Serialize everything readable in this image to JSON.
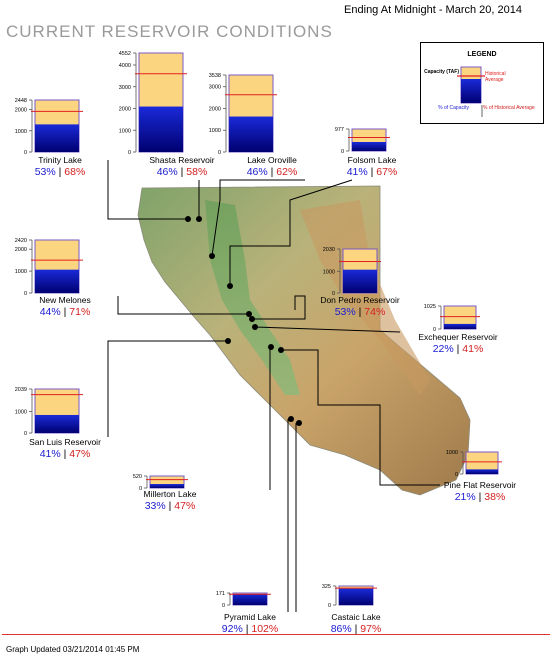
{
  "header": {
    "date_label": "Ending At Midnight - March 20, 2014",
    "title": "CURRENT RESERVOIR CONDITIONS"
  },
  "footer": {
    "updated": "Graph Updated 03/21/2014 01:45 PM"
  },
  "legend": {
    "title": "LEGEND",
    "capacity": "Capacity (TAF)",
    "historical": "Historical Average",
    "pct_capacity": "% of Capacity",
    "pct_historical": "% of Historical Average"
  },
  "colors": {
    "capacity_fill": "#fcd580",
    "storage_fill": "#0a14b0",
    "historical_line": "#e02020",
    "pct_capacity_text": "#1a1ad0",
    "pct_historical_text": "#d42020"
  },
  "chart_data": {
    "type": "bar",
    "units": "TAF",
    "reservoirs": [
      {
        "name": "Trinity Lake",
        "capacity": 2448,
        "storage": 1300,
        "historical": 1910,
        "pct_capacity": "53%",
        "pct_historical": "68%",
        "ticks": [
          "2448",
          "2000",
          "1000",
          "0"
        ]
      },
      {
        "name": "Shasta Reservoir",
        "capacity": 4552,
        "storage": 2090,
        "historical": 3600,
        "pct_capacity": "46%",
        "pct_historical": "58%",
        "ticks": [
          "4552",
          "4000",
          "3000",
          "2000",
          "1000",
          "0"
        ]
      },
      {
        "name": "Lake Oroville",
        "capacity": 3538,
        "storage": 1630,
        "historical": 2630,
        "pct_capacity": "46%",
        "pct_historical": "62%",
        "ticks": [
          "3538",
          "3000",
          "2000",
          "1000",
          "0"
        ]
      },
      {
        "name": "Folsom Lake",
        "capacity": 977,
        "storage": 400,
        "historical": 597,
        "pct_capacity": "41%",
        "pct_historical": "67%",
        "ticks": [
          "977",
          "0"
        ]
      },
      {
        "name": "New Melones",
        "capacity": 2420,
        "storage": 1065,
        "historical": 1500,
        "pct_capacity": "44%",
        "pct_historical": "71%",
        "ticks": [
          "2420",
          "2000",
          "1000",
          "0"
        ]
      },
      {
        "name": "Don Pedro Reservoir",
        "capacity": 2030,
        "storage": 1076,
        "historical": 1454,
        "pct_capacity": "53%",
        "pct_historical": "74%",
        "ticks": [
          "2030",
          "1000",
          "0"
        ]
      },
      {
        "name": "Exchequer Reservoir",
        "capacity": 1025,
        "storage": 226,
        "historical": 550,
        "pct_capacity": "22%",
        "pct_historical": "41%",
        "ticks": [
          "1025",
          "0"
        ]
      },
      {
        "name": "San Luis Reservoir",
        "capacity": 2039,
        "storage": 836,
        "historical": 1779,
        "pct_capacity": "41%",
        "pct_historical": "47%",
        "ticks": [
          "2039",
          "1000",
          "0"
        ]
      },
      {
        "name": "Millerton Lake",
        "capacity": 520,
        "storage": 172,
        "historical": 365,
        "pct_capacity": "33%",
        "pct_historical": "47%",
        "ticks": [
          "520",
          "0"
        ]
      },
      {
        "name": "Pine Flat Reservoir",
        "capacity": 1000,
        "storage": 210,
        "historical": 553,
        "pct_capacity": "21%",
        "pct_historical": "38%",
        "ticks": [
          "1000",
          "0"
        ]
      },
      {
        "name": "Pyramid Lake",
        "capacity": 171,
        "storage": 157,
        "historical": 154,
        "pct_capacity": "92%",
        "pct_historical": "102%",
        "ticks": [
          "171",
          "0"
        ]
      },
      {
        "name": "Castaic Lake",
        "capacity": 325,
        "storage": 280,
        "historical": 288,
        "pct_capacity": "86%",
        "pct_historical": "97%",
        "ticks": [
          "325",
          "0"
        ]
      }
    ]
  }
}
